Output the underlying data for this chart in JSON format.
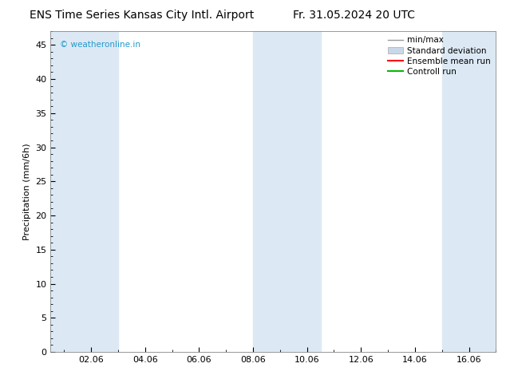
{
  "title_left": "ENS Time Series Kansas City Intl. Airport",
  "title_right": "Fr. 31.05.2024 20 UTC",
  "ylabel": "Precipitation (mm/6h)",
  "watermark": "© weatheronline.in",
  "watermark_color": "#2299cc",
  "ylim": [
    0,
    47
  ],
  "yticks": [
    0,
    5,
    10,
    15,
    20,
    25,
    30,
    35,
    40,
    45
  ],
  "xtick_labels": [
    "02.06",
    "04.06",
    "06.06",
    "08.06",
    "10.06",
    "12.06",
    "14.06",
    "16.06"
  ],
  "xtick_positions": [
    2,
    4,
    6,
    8,
    10,
    12,
    14,
    16
  ],
  "xlim": [
    0.5,
    17.0
  ],
  "shaded_bands": [
    {
      "xmin": 0.5,
      "xmax": 3.0,
      "color": "#dce9f5"
    },
    {
      "xmin": 8.0,
      "xmax": 10.5,
      "color": "#dce9f5"
    },
    {
      "xmin": 15.0,
      "xmax": 17.0,
      "color": "#dce9f5"
    }
  ],
  "bg_color": "#ffffff",
  "plot_bg_color": "#ffffff",
  "legend_items": [
    {
      "label": "min/max",
      "color": "#aaaaaa",
      "style": "errorbar"
    },
    {
      "label": "Standard deviation",
      "color": "#c8d8e8",
      "style": "fill"
    },
    {
      "label": "Ensemble mean run",
      "color": "#ff0000",
      "style": "line"
    },
    {
      "label": "Controll run",
      "color": "#00bb00",
      "style": "line"
    }
  ],
  "title_fontsize": 10,
  "axis_fontsize": 8,
  "tick_fontsize": 8,
  "legend_fontsize": 7.5
}
